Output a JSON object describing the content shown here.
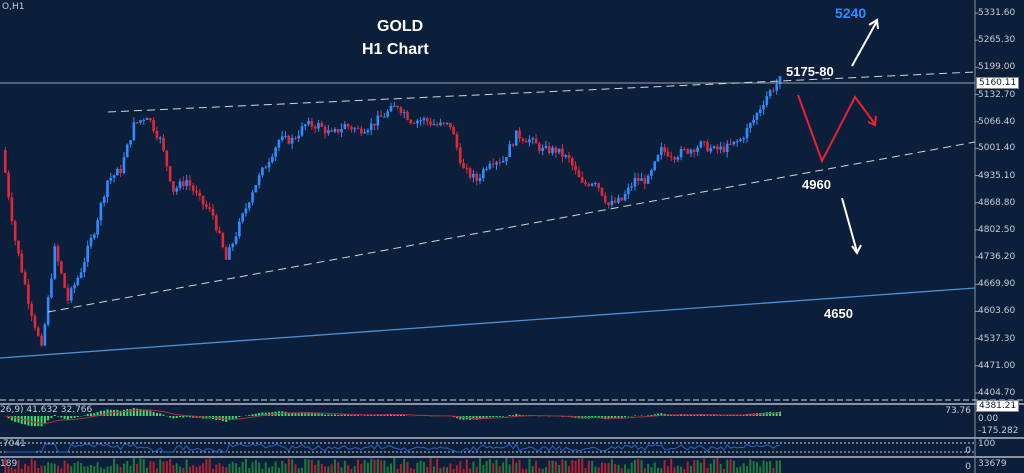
{
  "symbol_label": "O,H1",
  "title": "GOLD",
  "subtitle": "H1 Chart",
  "annotations": {
    "target_up": "5240",
    "resistance": "5175-80",
    "support_mid": "4960",
    "support_low": "4650"
  },
  "colors": {
    "background": "#0b1f3a",
    "bull_candle": "#2f8cff",
    "bear_candle": "#e0283a",
    "target_text": "#2f8cff",
    "scenario_arrow": "#e8232f",
    "macd_histogram": "#3ddc6a",
    "macd_signal": "#b03040"
  },
  "indicators": {
    "macd_label": "26,9) 41.632 32.766",
    "osc_label": ".7041",
    "volume_label": "189",
    "macd_axis": [
      "73.76",
      "0.00",
      "-175.282"
    ],
    "osc_axis": [
      "100",
      "0"
    ],
    "volume_axis": [
      "33679",
      "0"
    ]
  },
  "chart_data": {
    "type": "candlestick",
    "timeframe": "H1",
    "ylim": [
      4381.21,
      5360
    ],
    "y_ticks": [
      "5331.60",
      "5265.30",
      "5199.00",
      "5132.70",
      "5066.40",
      "5001.40",
      "4935.10",
      "4868.80",
      "4802.50",
      "4736.20",
      "4669.90",
      "4603.60",
      "4537.30",
      "4471.00",
      "4404.70"
    ],
    "current_price": "5160.11",
    "closes": [
      4997,
      4778,
      4632,
      4510,
      4754,
      4632,
      4705,
      4802,
      4924,
      4949,
      5058,
      5083,
      5022,
      4900,
      4924,
      4875,
      4839,
      4729,
      4814,
      4900,
      4961,
      5022,
      5022,
      5058,
      5058,
      5034,
      5058,
      5046,
      5058,
      5083,
      5107,
      5071,
      5071,
      5058,
      5058,
      4949,
      4924,
      4973,
      4973,
      5034,
      5022,
      4997,
      4997,
      4973,
      4912,
      4924,
      4863,
      4875,
      4924,
      4924,
      4997,
      4985,
      4997,
      5010,
      4997,
      5003,
      5022,
      5071,
      5131,
      5168
    ]
  }
}
